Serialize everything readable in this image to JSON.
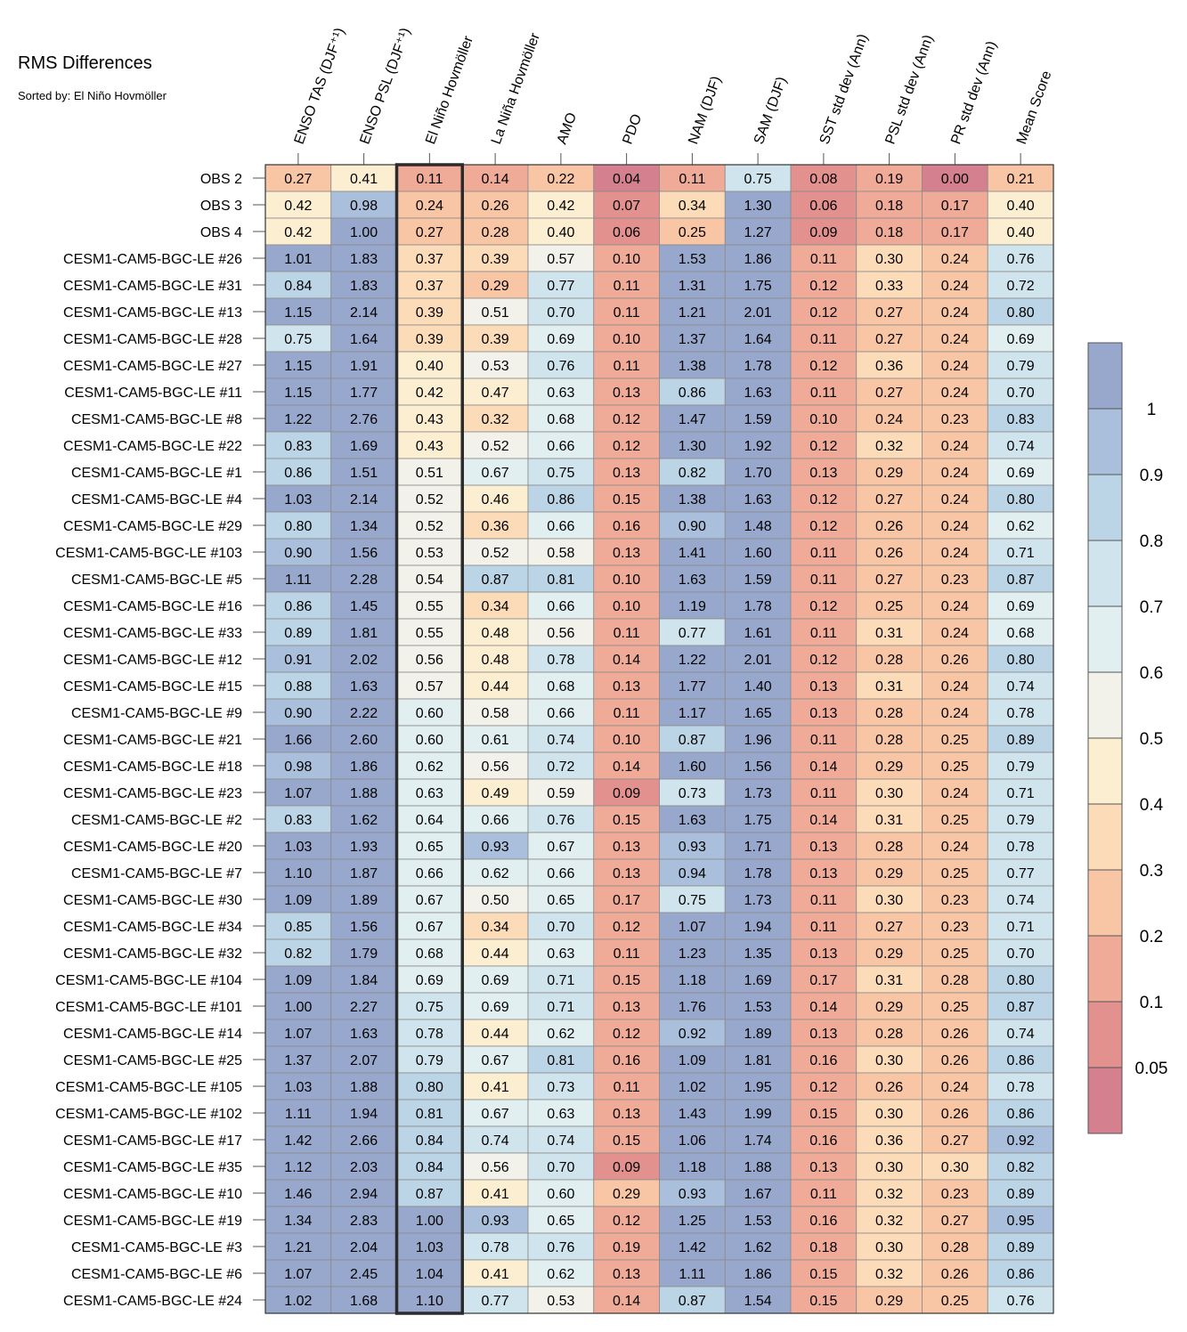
{
  "title": "RMS Differences",
  "subtitle": "Sorted by: El Niño Hovmöller",
  "chart_data": {
    "type": "heatmap",
    "title": "RMS Differences",
    "subtitle": "Sorted by: El Niño Hovmöller",
    "highlighted_column": "El Niño Hovmöller",
    "columns": [
      "ENSO TAS (DJF⁺¹)",
      "ENSO PSL (DJF⁺¹)",
      "El Niño Hovmöller",
      "La Niña Hovmöller",
      "AMO",
      "PDO",
      "NAM (DJF)",
      "SAM (DJF)",
      "SST std dev (Ann)",
      "PSL std dev (Ann)",
      "PR std dev (Ann)",
      "Mean Score"
    ],
    "rows": [
      "OBS 2",
      "OBS 3",
      "OBS 4",
      "CESM1-CAM5-BGC-LE #26",
      "CESM1-CAM5-BGC-LE #31",
      "CESM1-CAM5-BGC-LE #13",
      "CESM1-CAM5-BGC-LE #28",
      "CESM1-CAM5-BGC-LE #27",
      "CESM1-CAM5-BGC-LE #11",
      "CESM1-CAM5-BGC-LE #8",
      "CESM1-CAM5-BGC-LE #22",
      "CESM1-CAM5-BGC-LE #1",
      "CESM1-CAM5-BGC-LE #4",
      "CESM1-CAM5-BGC-LE #29",
      "CESM1-CAM5-BGC-LE #103",
      "CESM1-CAM5-BGC-LE #5",
      "CESM1-CAM5-BGC-LE #16",
      "CESM1-CAM5-BGC-LE #33",
      "CESM1-CAM5-BGC-LE #12",
      "CESM1-CAM5-BGC-LE #15",
      "CESM1-CAM5-BGC-LE #9",
      "CESM1-CAM5-BGC-LE #21",
      "CESM1-CAM5-BGC-LE #18",
      "CESM1-CAM5-BGC-LE #23",
      "CESM1-CAM5-BGC-LE #2",
      "CESM1-CAM5-BGC-LE #20",
      "CESM1-CAM5-BGC-LE #7",
      "CESM1-CAM5-BGC-LE #30",
      "CESM1-CAM5-BGC-LE #34",
      "CESM1-CAM5-BGC-LE #32",
      "CESM1-CAM5-BGC-LE #104",
      "CESM1-CAM5-BGC-LE #101",
      "CESM1-CAM5-BGC-LE #14",
      "CESM1-CAM5-BGC-LE #25",
      "CESM1-CAM5-BGC-LE #105",
      "CESM1-CAM5-BGC-LE #102",
      "CESM1-CAM5-BGC-LE #17",
      "CESM1-CAM5-BGC-LE #35",
      "CESM1-CAM5-BGC-LE #10",
      "CESM1-CAM5-BGC-LE #19",
      "CESM1-CAM5-BGC-LE #3",
      "CESM1-CAM5-BGC-LE #6",
      "CESM1-CAM5-BGC-LE #24"
    ],
    "values": [
      [
        "0.27",
        "0.41",
        "0.11",
        "0.14",
        "0.22",
        "0.04",
        "0.11",
        "0.75",
        "0.08",
        "0.19",
        "0.00",
        "0.21"
      ],
      [
        "0.42",
        "0.98",
        "0.24",
        "0.26",
        "0.42",
        "0.07",
        "0.34",
        "1.30",
        "0.06",
        "0.18",
        "0.17",
        "0.40"
      ],
      [
        "0.42",
        "1.00",
        "0.27",
        "0.28",
        "0.40",
        "0.06",
        "0.25",
        "1.27",
        "0.09",
        "0.18",
        "0.17",
        "0.40"
      ],
      [
        "1.01",
        "1.83",
        "0.37",
        "0.39",
        "0.57",
        "0.10",
        "1.53",
        "1.86",
        "0.11",
        "0.30",
        "0.24",
        "0.76"
      ],
      [
        "0.84",
        "1.83",
        "0.37",
        "0.29",
        "0.77",
        "0.11",
        "1.31",
        "1.75",
        "0.12",
        "0.33",
        "0.24",
        "0.72"
      ],
      [
        "1.15",
        "2.14",
        "0.39",
        "0.51",
        "0.70",
        "0.11",
        "1.21",
        "2.01",
        "0.12",
        "0.27",
        "0.24",
        "0.80"
      ],
      [
        "0.75",
        "1.64",
        "0.39",
        "0.39",
        "0.69",
        "0.10",
        "1.37",
        "1.64",
        "0.11",
        "0.27",
        "0.24",
        "0.69"
      ],
      [
        "1.15",
        "1.91",
        "0.40",
        "0.53",
        "0.76",
        "0.11",
        "1.38",
        "1.78",
        "0.12",
        "0.36",
        "0.24",
        "0.79"
      ],
      [
        "1.15",
        "1.77",
        "0.42",
        "0.47",
        "0.63",
        "0.13",
        "0.86",
        "1.63",
        "0.11",
        "0.27",
        "0.24",
        "0.70"
      ],
      [
        "1.22",
        "2.76",
        "0.43",
        "0.32",
        "0.68",
        "0.12",
        "1.47",
        "1.59",
        "0.10",
        "0.24",
        "0.23",
        "0.83"
      ],
      [
        "0.83",
        "1.69",
        "0.43",
        "0.52",
        "0.66",
        "0.12",
        "1.30",
        "1.92",
        "0.12",
        "0.32",
        "0.24",
        "0.74"
      ],
      [
        "0.86",
        "1.51",
        "0.51",
        "0.67",
        "0.75",
        "0.13",
        "0.82",
        "1.70",
        "0.13",
        "0.29",
        "0.24",
        "0.69"
      ],
      [
        "1.03",
        "2.14",
        "0.52",
        "0.46",
        "0.86",
        "0.15",
        "1.38",
        "1.63",
        "0.12",
        "0.27",
        "0.24",
        "0.80"
      ],
      [
        "0.80",
        "1.34",
        "0.52",
        "0.36",
        "0.66",
        "0.16",
        "0.90",
        "1.48",
        "0.12",
        "0.26",
        "0.24",
        "0.62"
      ],
      [
        "0.90",
        "1.56",
        "0.53",
        "0.52",
        "0.58",
        "0.13",
        "1.41",
        "1.60",
        "0.11",
        "0.26",
        "0.24",
        "0.71"
      ],
      [
        "1.11",
        "2.28",
        "0.54",
        "0.87",
        "0.81",
        "0.10",
        "1.63",
        "1.59",
        "0.11",
        "0.27",
        "0.23",
        "0.87"
      ],
      [
        "0.86",
        "1.45",
        "0.55",
        "0.34",
        "0.66",
        "0.10",
        "1.19",
        "1.78",
        "0.12",
        "0.25",
        "0.24",
        "0.69"
      ],
      [
        "0.89",
        "1.81",
        "0.55",
        "0.48",
        "0.56",
        "0.11",
        "0.77",
        "1.61",
        "0.11",
        "0.31",
        "0.24",
        "0.68"
      ],
      [
        "0.91",
        "2.02",
        "0.56",
        "0.48",
        "0.78",
        "0.14",
        "1.22",
        "2.01",
        "0.12",
        "0.28",
        "0.26",
        "0.80"
      ],
      [
        "0.88",
        "1.63",
        "0.57",
        "0.44",
        "0.68",
        "0.13",
        "1.77",
        "1.40",
        "0.13",
        "0.31",
        "0.24",
        "0.74"
      ],
      [
        "0.90",
        "2.22",
        "0.60",
        "0.58",
        "0.66",
        "0.11",
        "1.17",
        "1.65",
        "0.13",
        "0.28",
        "0.24",
        "0.78"
      ],
      [
        "1.66",
        "2.60",
        "0.60",
        "0.61",
        "0.74",
        "0.10",
        "0.87",
        "1.96",
        "0.11",
        "0.28",
        "0.25",
        "0.89"
      ],
      [
        "0.98",
        "1.86",
        "0.62",
        "0.56",
        "0.72",
        "0.14",
        "1.60",
        "1.56",
        "0.14",
        "0.29",
        "0.25",
        "0.79"
      ],
      [
        "1.07",
        "1.88",
        "0.63",
        "0.49",
        "0.59",
        "0.09",
        "0.73",
        "1.73",
        "0.11",
        "0.30",
        "0.24",
        "0.71"
      ],
      [
        "0.83",
        "1.62",
        "0.64",
        "0.66",
        "0.76",
        "0.15",
        "1.63",
        "1.75",
        "0.14",
        "0.31",
        "0.25",
        "0.79"
      ],
      [
        "1.03",
        "1.93",
        "0.65",
        "0.93",
        "0.67",
        "0.13",
        "0.93",
        "1.71",
        "0.13",
        "0.28",
        "0.24",
        "0.78"
      ],
      [
        "1.10",
        "1.87",
        "0.66",
        "0.62",
        "0.66",
        "0.13",
        "0.94",
        "1.78",
        "0.13",
        "0.29",
        "0.25",
        "0.77"
      ],
      [
        "1.09",
        "1.89",
        "0.67",
        "0.50",
        "0.65",
        "0.17",
        "0.75",
        "1.73",
        "0.11",
        "0.30",
        "0.23",
        "0.74"
      ],
      [
        "0.85",
        "1.56",
        "0.67",
        "0.34",
        "0.70",
        "0.12",
        "1.07",
        "1.94",
        "0.11",
        "0.27",
        "0.23",
        "0.71"
      ],
      [
        "0.82",
        "1.79",
        "0.68",
        "0.44",
        "0.63",
        "0.11",
        "1.23",
        "1.35",
        "0.13",
        "0.29",
        "0.25",
        "0.70"
      ],
      [
        "1.09",
        "1.84",
        "0.69",
        "0.69",
        "0.71",
        "0.15",
        "1.18",
        "1.69",
        "0.17",
        "0.31",
        "0.28",
        "0.80"
      ],
      [
        "1.00",
        "2.27",
        "0.75",
        "0.69",
        "0.71",
        "0.13",
        "1.76",
        "1.53",
        "0.14",
        "0.29",
        "0.25",
        "0.87"
      ],
      [
        "1.07",
        "1.63",
        "0.78",
        "0.44",
        "0.62",
        "0.12",
        "0.92",
        "1.89",
        "0.13",
        "0.28",
        "0.26",
        "0.74"
      ],
      [
        "1.37",
        "2.07",
        "0.79",
        "0.67",
        "0.81",
        "0.16",
        "1.09",
        "1.81",
        "0.16",
        "0.30",
        "0.26",
        "0.86"
      ],
      [
        "1.03",
        "1.88",
        "0.80",
        "0.41",
        "0.73",
        "0.11",
        "1.02",
        "1.95",
        "0.12",
        "0.26",
        "0.24",
        "0.78"
      ],
      [
        "1.11",
        "1.94",
        "0.81",
        "0.67",
        "0.63",
        "0.13",
        "1.43",
        "1.99",
        "0.15",
        "0.30",
        "0.26",
        "0.86"
      ],
      [
        "1.42",
        "2.66",
        "0.84",
        "0.74",
        "0.74",
        "0.15",
        "1.06",
        "1.74",
        "0.16",
        "0.36",
        "0.27",
        "0.92"
      ],
      [
        "1.12",
        "2.03",
        "0.84",
        "0.56",
        "0.70",
        "0.09",
        "1.18",
        "1.88",
        "0.13",
        "0.30",
        "0.30",
        "0.82"
      ],
      [
        "1.46",
        "2.94",
        "0.87",
        "0.41",
        "0.60",
        "0.29",
        "0.93",
        "1.67",
        "0.11",
        "0.32",
        "0.23",
        "0.89"
      ],
      [
        "1.34",
        "2.83",
        "1.00",
        "0.93",
        "0.65",
        "0.12",
        "1.25",
        "1.53",
        "0.16",
        "0.32",
        "0.27",
        "0.95"
      ],
      [
        "1.21",
        "2.04",
        "1.03",
        "0.78",
        "0.76",
        "0.19",
        "1.42",
        "1.62",
        "0.18",
        "0.30",
        "0.28",
        "0.89"
      ],
      [
        "1.07",
        "2.45",
        "1.04",
        "0.41",
        "0.62",
        "0.13",
        "1.11",
        "1.86",
        "0.15",
        "0.32",
        "0.26",
        "0.86"
      ],
      [
        "1.02",
        "1.68",
        "1.10",
        "0.77",
        "0.53",
        "0.14",
        "0.87",
        "1.54",
        "0.15",
        "0.29",
        "0.25",
        "0.76"
      ]
    ],
    "colorbar": {
      "labels": [
        "1",
        "0.9",
        "0.8",
        "0.7",
        "0.6",
        "0.5",
        "0.4",
        "0.3",
        "0.2",
        "0.1",
        "0.05"
      ],
      "bins": [
        {
          "min": 1.0,
          "color": "#98a8cc"
        },
        {
          "min": 0.9,
          "color": "#a9bfdb"
        },
        {
          "min": 0.8,
          "color": "#bcd5e6"
        },
        {
          "min": 0.7,
          "color": "#cfe4ec"
        },
        {
          "min": 0.6,
          "color": "#e1eff1"
        },
        {
          "min": 0.5,
          "color": "#f2f2ea"
        },
        {
          "min": 0.4,
          "color": "#fcefd1"
        },
        {
          "min": 0.3,
          "color": "#fcdcb8"
        },
        {
          "min": 0.2,
          "color": "#f8c5a5"
        },
        {
          "min": 0.1,
          "color": "#f0ab98"
        },
        {
          "min": 0.05,
          "color": "#e2918f"
        },
        {
          "min": -1,
          "color": "#d4808f"
        }
      ]
    }
  }
}
